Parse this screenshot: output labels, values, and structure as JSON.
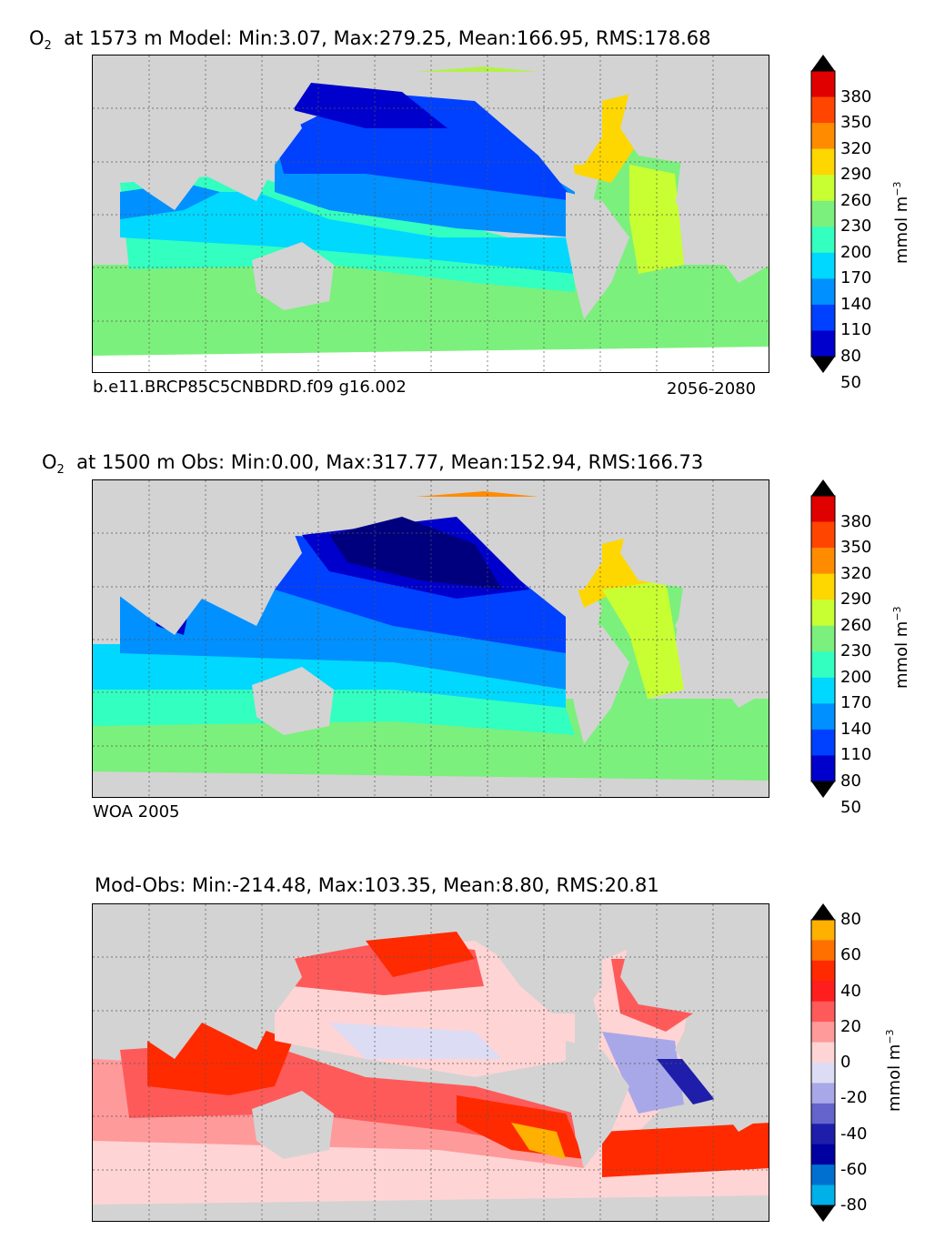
{
  "panels": [
    {
      "title_prefix": "O",
      "title_sub": "2",
      "title_rest": "at 1573 m Model: Min:3.07, Max:279.25, Mean:166.95, RMS:178.68",
      "foot_left": "b.e11.BRCP85C5CNBDRD.f09 g16.002",
      "foot_right": "2056-2080",
      "colorbar": {
        "ticks": [
          "380",
          "350",
          "320",
          "290",
          "260",
          "230",
          "200",
          "170",
          "140",
          "110",
          "80",
          "50"
        ],
        "unit_base": "mmol m",
        "unit_exp": "−3",
        "colors": [
          "#7f0000",
          "#e00000",
          "#ff4500",
          "#ff8c00",
          "#ffd700",
          "#c8ff32",
          "#7cf07c",
          "#32ffc0",
          "#00d8ff",
          "#0090ff",
          "#0040ff",
          "#0000cc",
          "#00007f"
        ]
      }
    },
    {
      "title_prefix": "O",
      "title_sub": "2",
      "title_rest": "at 1500 m Obs: Min:0.00, Max:317.77, Mean:152.94, RMS:166.73",
      "foot_left": "WOA 2005",
      "foot_right": "",
      "colorbar": {
        "ticks": [
          "380",
          "350",
          "320",
          "290",
          "260",
          "230",
          "200",
          "170",
          "140",
          "110",
          "80",
          "50"
        ],
        "unit_base": "mmol m",
        "unit_exp": "−3",
        "colors": [
          "#7f0000",
          "#e00000",
          "#ff4500",
          "#ff8c00",
          "#ffd700",
          "#c8ff32",
          "#7cf07c",
          "#32ffc0",
          "#00d8ff",
          "#0090ff",
          "#0040ff",
          "#0000cc",
          "#00007f"
        ]
      }
    },
    {
      "title_prefix": "",
      "title_sub": "",
      "title_rest": "Mod-Obs: Min:-214.48, Max:103.35, Mean:8.80, RMS:20.81",
      "foot_left": "",
      "foot_right": "",
      "colorbar": {
        "ticks": [
          "80",
          "60",
          "40",
          "20",
          "0",
          "-20",
          "-40",
          "-60",
          "-80"
        ],
        "unit_base": "mmol m",
        "unit_exp": "−3",
        "colors": [
          "#ffff00",
          "#ffb000",
          "#ff7000",
          "#ff2a00",
          "#ff1e1e",
          "#ff5a5a",
          "#ff9a9a",
          "#ffd4d4",
          "#dcdcf4",
          "#a8a8e8",
          "#6464cc",
          "#1e1eaa",
          "#0000a0",
          "#0070d0",
          "#00b0e8",
          "#00ffff"
        ]
      }
    }
  ]
}
